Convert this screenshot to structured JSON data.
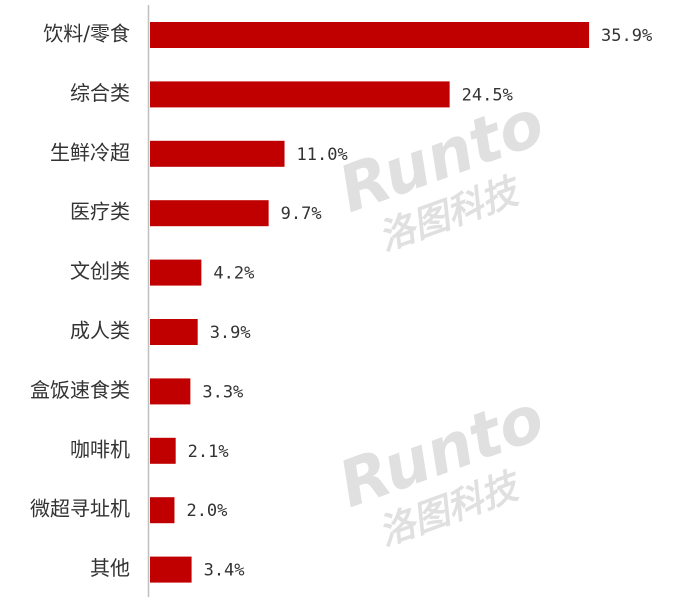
{
  "chart_data": {
    "type": "bar",
    "orientation": "horizontal",
    "categories": [
      "饮料/零食",
      "综合类",
      "生鲜冷超",
      "医疗类",
      "文创类",
      "成人类",
      "盒饭速食类",
      "咖啡机",
      "微超寻址机",
      "其他"
    ],
    "values": [
      35.9,
      24.5,
      11.0,
      9.7,
      4.2,
      3.9,
      3.3,
      2.1,
      2.0,
      3.4
    ],
    "value_labels": [
      "35.9%",
      "24.5%",
      "11.0%",
      "9.7%",
      "4.2%",
      "3.9%",
      "3.3%",
      "2.1%",
      "2.0%",
      "3.4%"
    ],
    "color": "#c00000",
    "watermark": "Runto",
    "watermark_cn": "洛图科技"
  }
}
